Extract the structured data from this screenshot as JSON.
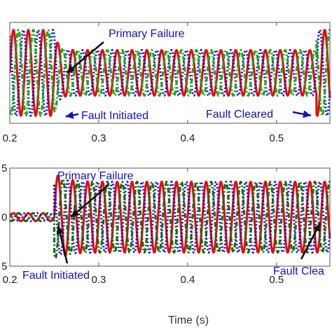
{
  "chart_data": [
    {
      "type": "line",
      "xlim": [
        0.2,
        0.56
      ],
      "ylim": [
        -1,
        1
      ],
      "xticks": [
        0.2,
        0.3,
        0.4,
        0.5
      ],
      "xtick_labels": [
        "0.2",
        "0.3",
        "0.4",
        "0.5"
      ],
      "ytick_labels": [
        "",
        ""
      ],
      "frequency_hz": 60,
      "fault_start": 0.25,
      "fault_end": 0.545,
      "series": [
        {
          "color": "#e01010",
          "style": "solid",
          "phase_deg": 0,
          "amplitude_prefault": 0.85,
          "amplitude_fault": 0.45,
          "amplitude_postfault": 0.85
        },
        {
          "color": "#1010e0",
          "style": "dotted",
          "phase_deg": 120,
          "amplitude_prefault": 0.85,
          "amplitude_fault": 0.45,
          "amplitude_postfault": 0.85
        },
        {
          "color": "#10b010",
          "style": "dashdot",
          "phase_deg": 240,
          "amplitude_prefault": 0.85,
          "amplitude_fault": 0.45,
          "amplitude_postfault": 0.85
        }
      ],
      "annotations": [
        {
          "label": "Primary Failure",
          "x": 0.272,
          "y": 0.0
        },
        {
          "label": "Fault Initiated",
          "x": 0.258,
          "y": -0.7
        },
        {
          "label": "Fault Cleared",
          "x": 0.545,
          "y": -0.5
        }
      ]
    },
    {
      "type": "line",
      "xlim": [
        0.2,
        0.56
      ],
      "ylim": [
        -1,
        1
      ],
      "xticks": [
        0.2,
        0.3,
        0.4,
        0.5
      ],
      "xtick_labels": [
        "0.2",
        "0.3",
        "0.4",
        "0.5"
      ],
      "ytick_labels": [
        "5",
        "0",
        "5"
      ],
      "xlabel": "Time (s)",
      "frequency_hz": 60,
      "fault_start": 0.25,
      "fault_end": 0.545,
      "series": [
        {
          "color": "#e01010",
          "style": "solid",
          "phase_deg": 0,
          "amplitude_prefault": 0.08,
          "amplitude_fault": 0.72,
          "peak_overshoot": 0.9
        },
        {
          "color": "#1010e0",
          "style": "dotted",
          "phase_deg": 120,
          "amplitude_prefault": 0.08,
          "amplitude_fault": 0.72,
          "peak_overshoot": 0.8
        },
        {
          "color": "#107010",
          "style": "dashdot",
          "phase_deg": 240,
          "amplitude_prefault": 0.08,
          "amplitude_fault": 0.72,
          "peak_overshoot": 0.85
        }
      ],
      "annotations": [
        {
          "label": "Primary Failure",
          "x": 0.272,
          "y": 0.0
        },
        {
          "label": "Fault Initiated",
          "x": 0.253,
          "y": -0.15
        },
        {
          "label": "Fault Clea",
          "x": 0.552,
          "y": -0.1
        }
      ]
    }
  ]
}
